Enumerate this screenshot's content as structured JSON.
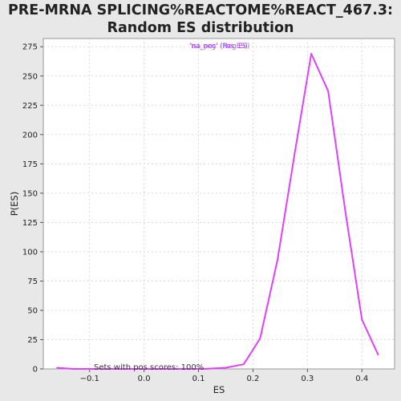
{
  "title_line1": "PRE-MRNA SPLICING%REACTOME%REACT_467.3:",
  "title_line2": "Random ES distribution",
  "annotation": "Sets with pos scores: 100%",
  "legend": [
    {
      "label": "'na_pos' (Pos ES)",
      "color": "#e040fb"
    },
    {
      "label": "'na_neg' (Neg ES)",
      "color": "#7c4dff"
    }
  ],
  "colors": {
    "series": "#e040fb",
    "background": "#e8e8e8",
    "plot_bg": "#ffffff"
  },
  "chart_data": {
    "type": "line",
    "xlabel": "ES",
    "ylabel": "P(ES)",
    "xlim": [
      -0.185,
      0.46
    ],
    "ylim": [
      0,
      282
    ],
    "xticks": [
      -0.1,
      0.0,
      0.1,
      0.2,
      0.3,
      0.4
    ],
    "xtick_labels": [
      "−0.1",
      "0.0",
      "0.1",
      "0.2",
      "0.3",
      "0.4"
    ],
    "yticks": [
      0,
      25,
      50,
      75,
      100,
      125,
      150,
      175,
      200,
      225,
      250,
      275
    ],
    "grid": true,
    "legend_position": "top-center",
    "series": [
      {
        "name": "'na_pos' (Pos ES)",
        "color": "#e040fb",
        "x": [
          -0.16,
          -0.13,
          -0.1,
          -0.07,
          -0.04,
          -0.01,
          0.02,
          0.05,
          0.08,
          0.11,
          0.15,
          0.183,
          0.213,
          0.245,
          0.277,
          0.307,
          0.338,
          0.37,
          0.4,
          0.43
        ],
        "y": [
          1,
          0,
          0,
          0,
          0,
          0,
          0,
          0,
          0,
          0,
          1,
          4,
          26,
          93,
          185,
          269,
          237,
          133,
          42,
          12
        ]
      }
    ]
  }
}
